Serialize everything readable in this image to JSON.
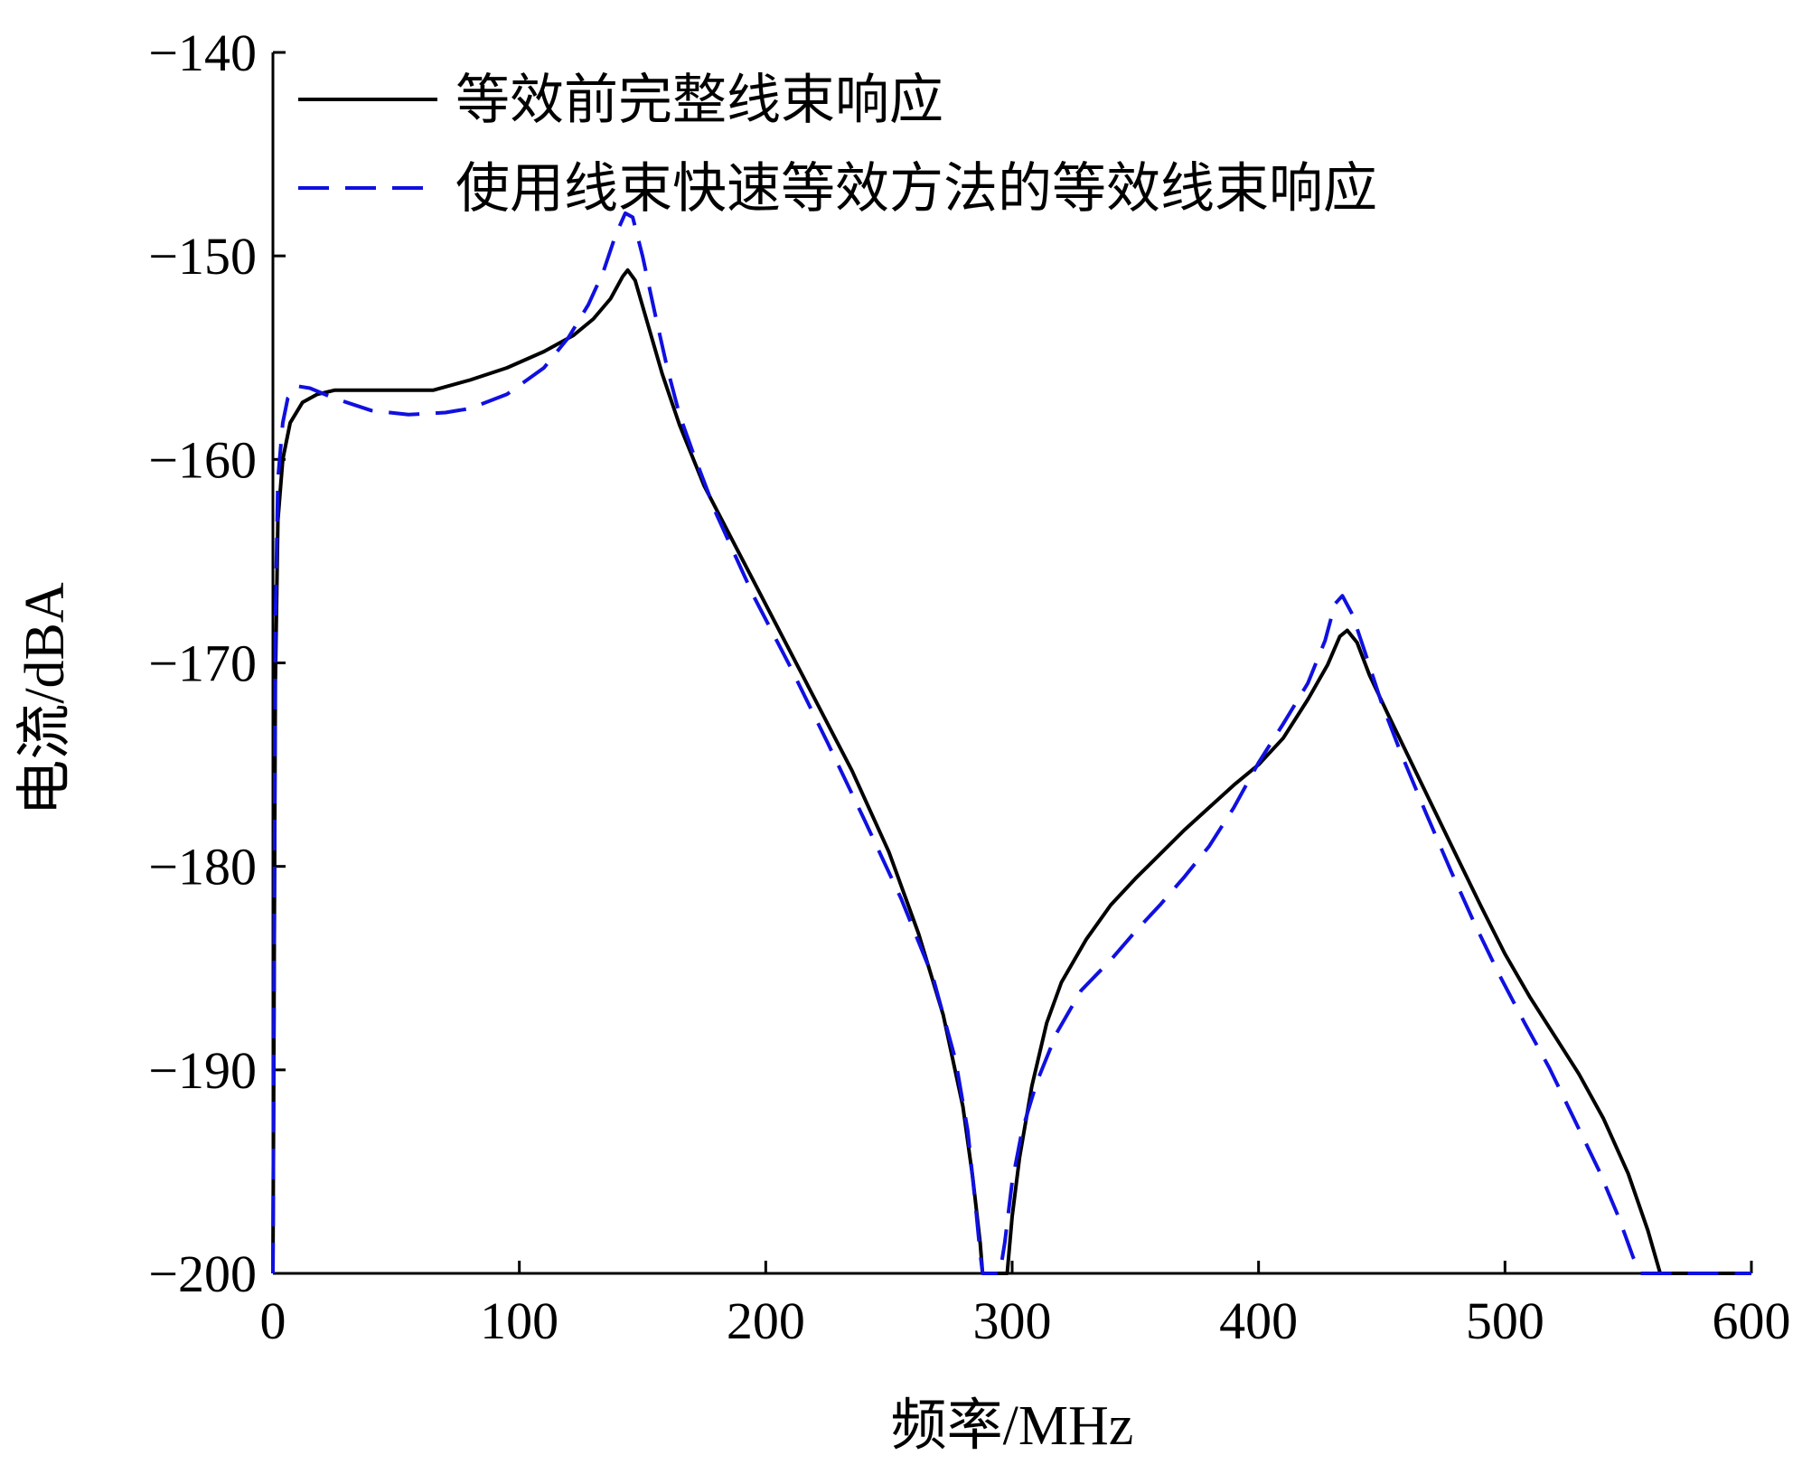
{
  "chart_data": {
    "type": "line",
    "xlabel": "频率/MHz",
    "ylabel": "电流/dBA",
    "xlim": [
      0,
      600
    ],
    "ylim": [
      -200,
      -140
    ],
    "xticks": [
      0,
      100,
      200,
      300,
      400,
      500,
      600
    ],
    "yticks": [
      -140,
      -150,
      -160,
      -170,
      -180,
      -190,
      -200
    ],
    "xtick_labels": [
      "0",
      "100",
      "200",
      "300",
      "400",
      "500",
      "600"
    ],
    "ytick_labels": [
      "−140",
      "−150",
      "−160",
      "−170",
      "−180",
      "−190",
      "−200"
    ],
    "grid": false,
    "legend_position": "top-left",
    "series": [
      {
        "name": "等效前完整线束响应",
        "color": "#000000",
        "dash": "solid",
        "points": [
          [
            0,
            -200
          ],
          [
            0.5,
            -185
          ],
          [
            1,
            -171
          ],
          [
            2,
            -163
          ],
          [
            4,
            -160
          ],
          [
            7,
            -158.2
          ],
          [
            12,
            -157.2
          ],
          [
            18,
            -156.8
          ],
          [
            25,
            -156.6
          ],
          [
            40,
            -156.6
          ],
          [
            65,
            -156.6
          ],
          [
            80,
            -156.1
          ],
          [
            95,
            -155.5
          ],
          [
            110,
            -154.7
          ],
          [
            122,
            -153.9
          ],
          [
            130,
            -153.1
          ],
          [
            137,
            -152.1
          ],
          [
            142,
            -151.0
          ],
          [
            144,
            -150.7
          ],
          [
            147,
            -151.2
          ],
          [
            152,
            -153.3
          ],
          [
            158,
            -155.8
          ],
          [
            165,
            -158.3
          ],
          [
            175,
            -161.3
          ],
          [
            190,
            -164.8
          ],
          [
            205,
            -168.3
          ],
          [
            220,
            -171.8
          ],
          [
            235,
            -175.3
          ],
          [
            250,
            -179.3
          ],
          [
            262,
            -183.3
          ],
          [
            272,
            -187.3
          ],
          [
            280,
            -191.8
          ],
          [
            284,
            -195.3
          ],
          [
            287,
            -198.5
          ],
          [
            288,
            -200
          ],
          [
            298,
            -200
          ],
          [
            300,
            -197.2
          ],
          [
            303,
            -194.3
          ],
          [
            308,
            -190.8
          ],
          [
            314,
            -187.7
          ],
          [
            320,
            -185.7
          ],
          [
            330,
            -183.6
          ],
          [
            340,
            -181.9
          ],
          [
            350,
            -180.6
          ],
          [
            360,
            -179.4
          ],
          [
            370,
            -178.2
          ],
          [
            380,
            -177.1
          ],
          [
            390,
            -176.0
          ],
          [
            400,
            -175.0
          ],
          [
            410,
            -173.7
          ],
          [
            420,
            -171.8
          ],
          [
            428,
            -170.1
          ],
          [
            433,
            -168.7
          ],
          [
            436,
            -168.4
          ],
          [
            440,
            -169.0
          ],
          [
            445,
            -170.6
          ],
          [
            452,
            -172.4
          ],
          [
            460,
            -174.4
          ],
          [
            470,
            -176.9
          ],
          [
            480,
            -179.4
          ],
          [
            490,
            -181.9
          ],
          [
            500,
            -184.3
          ],
          [
            510,
            -186.4
          ],
          [
            520,
            -188.3
          ],
          [
            530,
            -190.2
          ],
          [
            540,
            -192.4
          ],
          [
            550,
            -195.1
          ],
          [
            558,
            -197.9
          ],
          [
            563,
            -200
          ],
          [
            600,
            -200
          ]
        ]
      },
      {
        "name": "使用线束快速等效方法的等效线束响应",
        "color": "#1010e0",
        "dash": "dashed",
        "points": [
          [
            0,
            -200
          ],
          [
            0.5,
            -185
          ],
          [
            1,
            -168
          ],
          [
            2,
            -161
          ],
          [
            4,
            -158.2
          ],
          [
            6,
            -157.0
          ],
          [
            10,
            -156.4
          ],
          [
            15,
            -156.5
          ],
          [
            25,
            -157.0
          ],
          [
            40,
            -157.6
          ],
          [
            55,
            -157.8
          ],
          [
            70,
            -157.7
          ],
          [
            80,
            -157.5
          ],
          [
            95,
            -156.8
          ],
          [
            110,
            -155.5
          ],
          [
            120,
            -154.0
          ],
          [
            128,
            -152.4
          ],
          [
            134,
            -150.8
          ],
          [
            139,
            -149.0
          ],
          [
            143,
            -147.9
          ],
          [
            146,
            -148.1
          ],
          [
            150,
            -150.0
          ],
          [
            155,
            -152.8
          ],
          [
            160,
            -155.5
          ],
          [
            165,
            -157.8
          ],
          [
            170,
            -159.5
          ],
          [
            180,
            -162.7
          ],
          [
            195,
            -166.7
          ],
          [
            210,
            -170.2
          ],
          [
            225,
            -173.9
          ],
          [
            240,
            -177.7
          ],
          [
            255,
            -181.6
          ],
          [
            268,
            -185.5
          ],
          [
            277,
            -189.5
          ],
          [
            282,
            -193.0
          ],
          [
            285,
            -196.5
          ],
          [
            287,
            -199.0
          ],
          [
            288,
            -200
          ],
          [
            295,
            -200
          ],
          [
            297,
            -198.5
          ],
          [
            300,
            -195.5
          ],
          [
            304,
            -193.0
          ],
          [
            310,
            -190.6
          ],
          [
            318,
            -188.2
          ],
          [
            328,
            -186.1
          ],
          [
            340,
            -184.6
          ],
          [
            350,
            -183.2
          ],
          [
            360,
            -181.9
          ],
          [
            370,
            -180.5
          ],
          [
            380,
            -179.0
          ],
          [
            390,
            -177.1
          ],
          [
            400,
            -174.9
          ],
          [
            410,
            -173.0
          ],
          [
            420,
            -171.0
          ],
          [
            427,
            -168.9
          ],
          [
            431,
            -167.1
          ],
          [
            434,
            -166.7
          ],
          [
            438,
            -167.6
          ],
          [
            443,
            -169.4
          ],
          [
            450,
            -172.0
          ],
          [
            458,
            -174.5
          ],
          [
            468,
            -177.4
          ],
          [
            478,
            -180.2
          ],
          [
            488,
            -182.9
          ],
          [
            498,
            -185.4
          ],
          [
            508,
            -187.7
          ],
          [
            518,
            -189.9
          ],
          [
            528,
            -192.4
          ],
          [
            538,
            -194.9
          ],
          [
            546,
            -197.2
          ],
          [
            552,
            -199.2
          ],
          [
            555,
            -200
          ],
          [
            600,
            -200
          ]
        ]
      }
    ]
  }
}
